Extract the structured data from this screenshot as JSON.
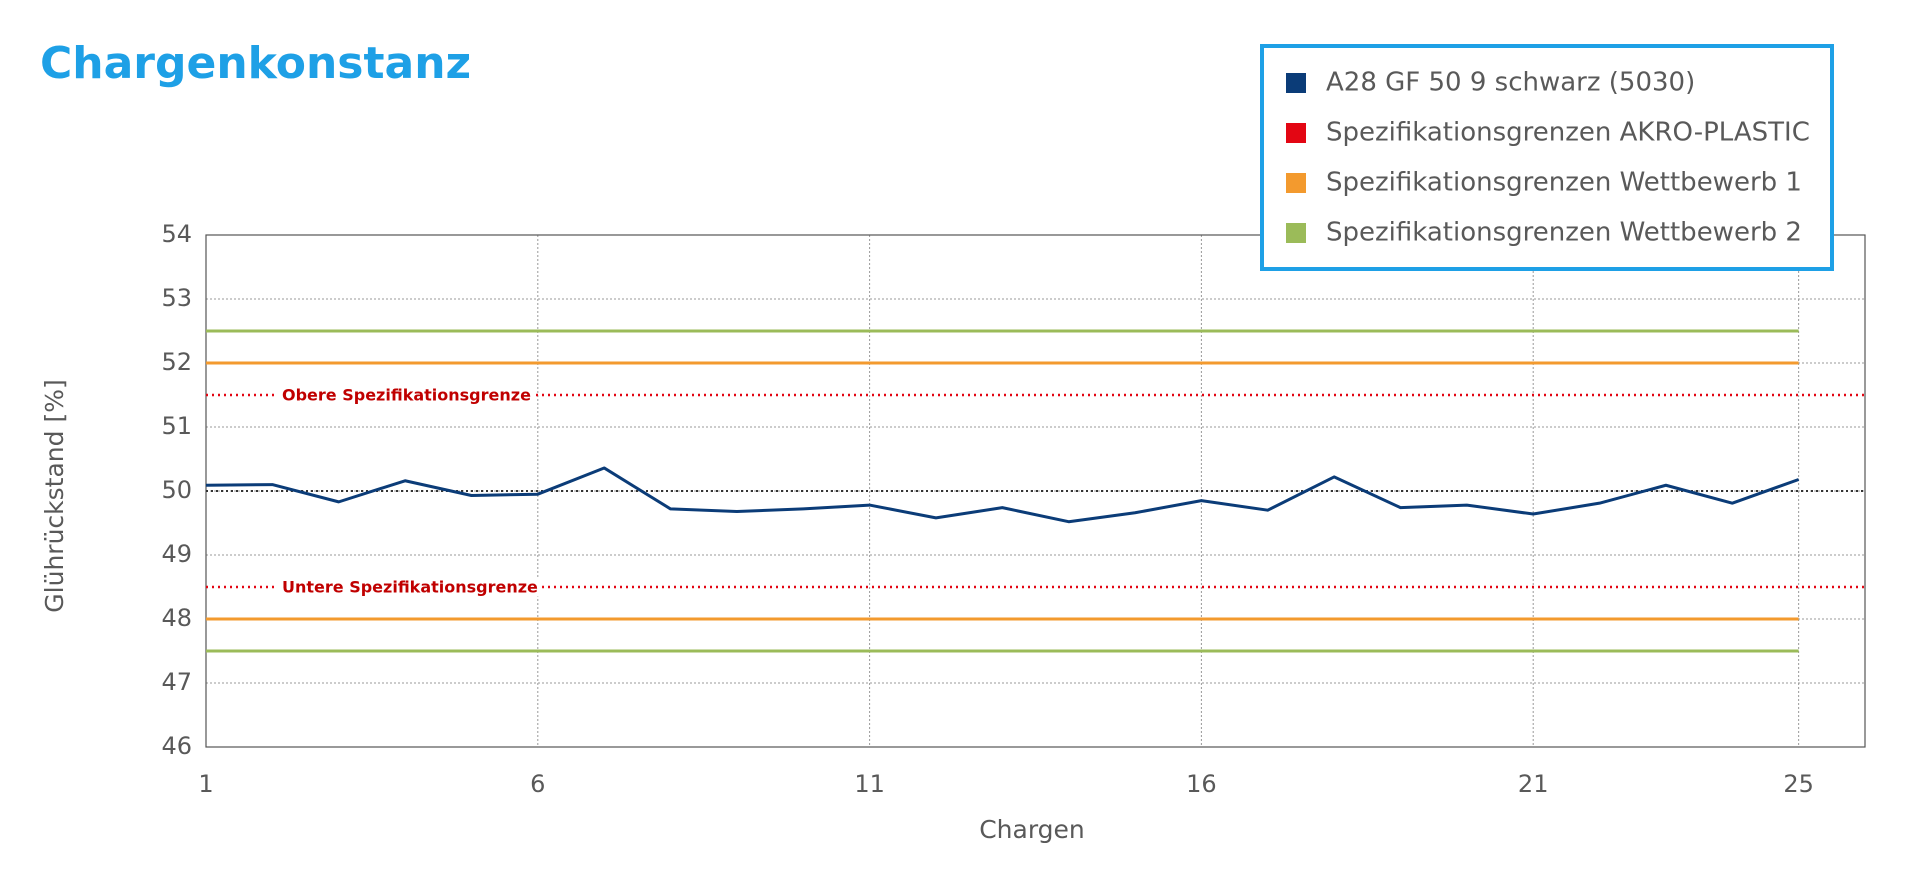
{
  "chart_data": {
    "type": "line",
    "title": "Chargenkonstanz",
    "x_label": "Chargen",
    "y_label": "Glührückstand [%]",
    "x": [
      1,
      2,
      3,
      4,
      5,
      6,
      7,
      8,
      9,
      10,
      11,
      12,
      13,
      14,
      15,
      16,
      17,
      18,
      19,
      20,
      21,
      22,
      23,
      24,
      25
    ],
    "series": [
      {
        "name": "A28 GF 50 9 schwarz (5030)",
        "color": "#0b3c78",
        "values": [
          50.09,
          50.1,
          49.83,
          50.16,
          49.93,
          49.95,
          50.36,
          49.72,
          49.68,
          49.72,
          49.78,
          49.58,
          49.74,
          49.52,
          49.66,
          49.85,
          49.7,
          50.22,
          49.74,
          49.78,
          49.64,
          49.81,
          50.09,
          49.81,
          50.18
        ]
      },
      {
        "name": "Spezifikationsgrenzen AKRO-PLASTIC",
        "color": "#e30613",
        "limits": [
          48.5,
          51.5
        ],
        "style": "dotted",
        "span": "full"
      },
      {
        "name": "Spezifikationsgrenzen Wettbewerb 1",
        "color": "#f39a2e",
        "limits": [
          48,
          52
        ],
        "style": "solid",
        "span": "data"
      },
      {
        "name": "Spezifikationsgrenzen Wettbewerb 2",
        "color": "#9bbb59",
        "limits": [
          47.5,
          52.5
        ],
        "style": "solid",
        "span": "data"
      }
    ],
    "nominal": 50,
    "annotations": [
      {
        "text": "Obere Spezifikationsgrenze",
        "y": 51.5
      },
      {
        "text": "Untere Spezifikationsgrenze",
        "y": 48.5
      }
    ],
    "xlim": [
      1,
      26
    ],
    "xticks": [
      1,
      6,
      11,
      16,
      21,
      25
    ],
    "ylim": [
      46,
      54
    ],
    "yticks": [
      46,
      47,
      48,
      49,
      50,
      51,
      52,
      53,
      54
    ],
    "grid": true,
    "legend": "top-right"
  }
}
